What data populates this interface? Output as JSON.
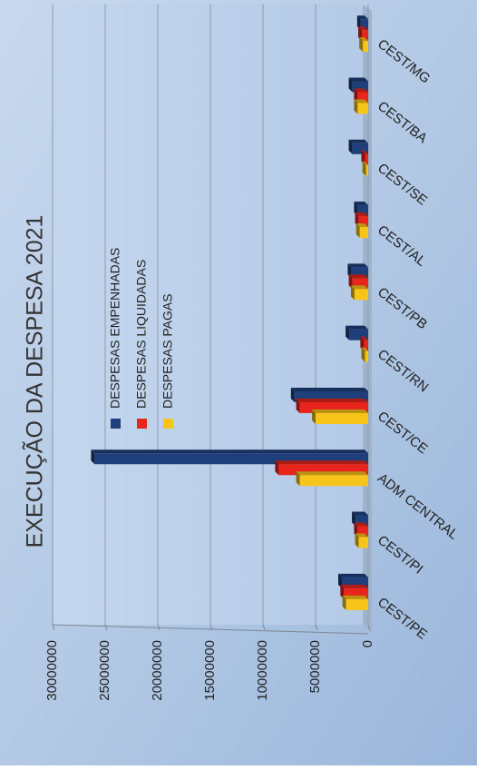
{
  "chart_data": {
    "type": "bar",
    "title": "EXECUÇÃO DA DESPESA 2021",
    "xlabel": "",
    "ylabel": "",
    "categories": [
      "CEST/PE",
      "CEST/PI",
      "ADM CENTRAL",
      "CEST/CE",
      "CEST/RN",
      "CEST/PB",
      "CEST/AL",
      "CEST/SE",
      "CEST/BA",
      "CEST/MG"
    ],
    "series": [
      {
        "name": "DESPESAS EMPENHADAS",
        "color": "#1F3F7A",
        "values": [
          2500000,
          1200000,
          26000000,
          7000000,
          1800000,
          1600000,
          1000000,
          1500000,
          1500000,
          700000
        ]
      },
      {
        "name": "DESPESAS LIQUIDADAS",
        "color": "#E8251C",
        "values": [
          2300000,
          1000000,
          8500000,
          6500000,
          400000,
          1500000,
          900000,
          300000,
          1000000,
          600000
        ]
      },
      {
        "name": "DESPESAS PAGAS",
        "color": "#F7C51A",
        "values": [
          2100000,
          900000,
          6500000,
          5000000,
          300000,
          1300000,
          800000,
          200000,
          1000000,
          500000
        ]
      }
    ],
    "ylim": [
      0,
      30000000
    ],
    "yticks": [
      0,
      5000000,
      10000000,
      15000000,
      20000000,
      25000000,
      30000000
    ],
    "yticklabels": [
      "0",
      "5000000",
      "10000000",
      "15000000",
      "20000000",
      "25000000",
      "30000000"
    ],
    "grid": true,
    "legend": "inside plot, upper-middle",
    "orientation": "rotated 90° counter-clockwise"
  }
}
